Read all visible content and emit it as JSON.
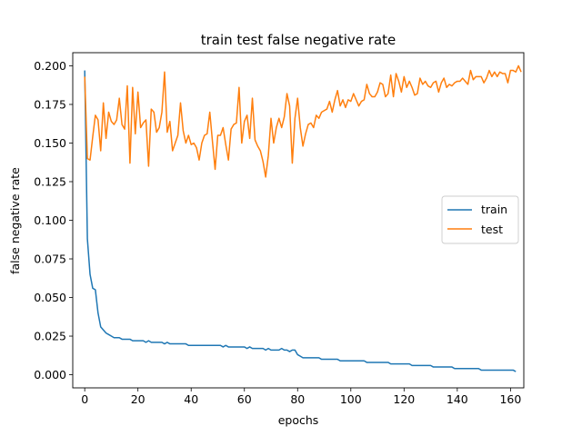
{
  "chart_data": {
    "type": "line",
    "title": "train test false negative rate",
    "xlabel": "epochs",
    "ylabel": "false negative rate",
    "xlim": [
      -4.5,
      165
    ],
    "ylim": [
      -0.0085,
      0.2085
    ],
    "xticks": [
      0,
      20,
      40,
      60,
      80,
      100,
      120,
      140,
      160
    ],
    "yticks": [
      0.0,
      0.025,
      0.05,
      0.075,
      0.1,
      0.125,
      0.15,
      0.175,
      0.2
    ],
    "ytick_labels": [
      "0.000",
      "0.025",
      "0.050",
      "0.075",
      "0.100",
      "0.125",
      "0.150",
      "0.175",
      "0.200"
    ],
    "grid": false,
    "legend_position": "center-right",
    "series": [
      {
        "name": "train",
        "color": "#1f77b4",
        "values": [
          0.197,
          0.088,
          0.065,
          0.056,
          0.055,
          0.04,
          0.031,
          0.029,
          0.027,
          0.026,
          0.025,
          0.024,
          0.024,
          0.024,
          0.023,
          0.023,
          0.023,
          0.023,
          0.022,
          0.022,
          0.022,
          0.022,
          0.022,
          0.021,
          0.022,
          0.021,
          0.021,
          0.021,
          0.021,
          0.021,
          0.02,
          0.021,
          0.02,
          0.02,
          0.02,
          0.02,
          0.02,
          0.02,
          0.02,
          0.019,
          0.019,
          0.019,
          0.019,
          0.019,
          0.019,
          0.019,
          0.019,
          0.019,
          0.019,
          0.019,
          0.019,
          0.019,
          0.018,
          0.019,
          0.018,
          0.018,
          0.018,
          0.018,
          0.018,
          0.018,
          0.018,
          0.017,
          0.018,
          0.017,
          0.017,
          0.017,
          0.017,
          0.017,
          0.016,
          0.017,
          0.016,
          0.016,
          0.016,
          0.016,
          0.017,
          0.016,
          0.016,
          0.015,
          0.016,
          0.016,
          0.013,
          0.012,
          0.011,
          0.011,
          0.011,
          0.011,
          0.011,
          0.011,
          0.011,
          0.01,
          0.01,
          0.01,
          0.01,
          0.01,
          0.01,
          0.01,
          0.009,
          0.009,
          0.009,
          0.009,
          0.009,
          0.009,
          0.009,
          0.009,
          0.009,
          0.009,
          0.008,
          0.008,
          0.008,
          0.008,
          0.008,
          0.008,
          0.008,
          0.008,
          0.008,
          0.007,
          0.007,
          0.007,
          0.007,
          0.007,
          0.007,
          0.007,
          0.007,
          0.006,
          0.006,
          0.006,
          0.006,
          0.006,
          0.006,
          0.006,
          0.006,
          0.005,
          0.005,
          0.005,
          0.005,
          0.005,
          0.005,
          0.005,
          0.005,
          0.004,
          0.004,
          0.004,
          0.004,
          0.004,
          0.004,
          0.004,
          0.004,
          0.004,
          0.004,
          0.003,
          0.003,
          0.003,
          0.003,
          0.003,
          0.003,
          0.003,
          0.003,
          0.003,
          0.003,
          0.003,
          0.003,
          0.003,
          0.002
        ]
      },
      {
        "name": "test",
        "color": "#ff7f0e",
        "values": [
          0.193,
          0.14,
          0.139,
          0.154,
          0.168,
          0.165,
          0.145,
          0.176,
          0.153,
          0.17,
          0.164,
          0.162,
          0.165,
          0.179,
          0.162,
          0.159,
          0.187,
          0.137,
          0.186,
          0.156,
          0.183,
          0.16,
          0.163,
          0.165,
          0.135,
          0.172,
          0.17,
          0.157,
          0.16,
          0.17,
          0.196,
          0.157,
          0.164,
          0.145,
          0.15,
          0.155,
          0.176,
          0.158,
          0.15,
          0.155,
          0.149,
          0.15,
          0.147,
          0.139,
          0.15,
          0.155,
          0.156,
          0.17,
          0.151,
          0.133,
          0.155,
          0.155,
          0.16,
          0.149,
          0.139,
          0.159,
          0.162,
          0.163,
          0.186,
          0.15,
          0.164,
          0.168,
          0.153,
          0.179,
          0.152,
          0.148,
          0.145,
          0.138,
          0.128,
          0.142,
          0.166,
          0.15,
          0.16,
          0.166,
          0.16,
          0.167,
          0.182,
          0.174,
          0.137,
          0.166,
          0.179,
          0.16,
          0.148,
          0.156,
          0.162,
          0.163,
          0.16,
          0.168,
          0.166,
          0.17,
          0.171,
          0.172,
          0.177,
          0.17,
          0.178,
          0.184,
          0.174,
          0.178,
          0.173,
          0.178,
          0.177,
          0.182,
          0.178,
          0.174,
          0.177,
          0.178,
          0.188,
          0.182,
          0.18,
          0.18,
          0.183,
          0.189,
          0.188,
          0.18,
          0.182,
          0.194,
          0.18,
          0.195,
          0.19,
          0.183,
          0.193,
          0.186,
          0.19,
          0.186,
          0.181,
          0.182,
          0.192,
          0.188,
          0.19,
          0.187,
          0.186,
          0.189,
          0.19,
          0.183,
          0.189,
          0.192,
          0.186,
          0.188,
          0.187,
          0.189,
          0.19,
          0.19,
          0.192,
          0.19,
          0.188,
          0.197,
          0.191,
          0.193,
          0.193,
          0.193,
          0.189,
          0.192,
          0.197,
          0.193,
          0.196,
          0.193,
          0.196,
          0.195,
          0.195,
          0.189,
          0.197,
          0.197,
          0.196,
          0.2,
          0.196
        ]
      }
    ]
  }
}
